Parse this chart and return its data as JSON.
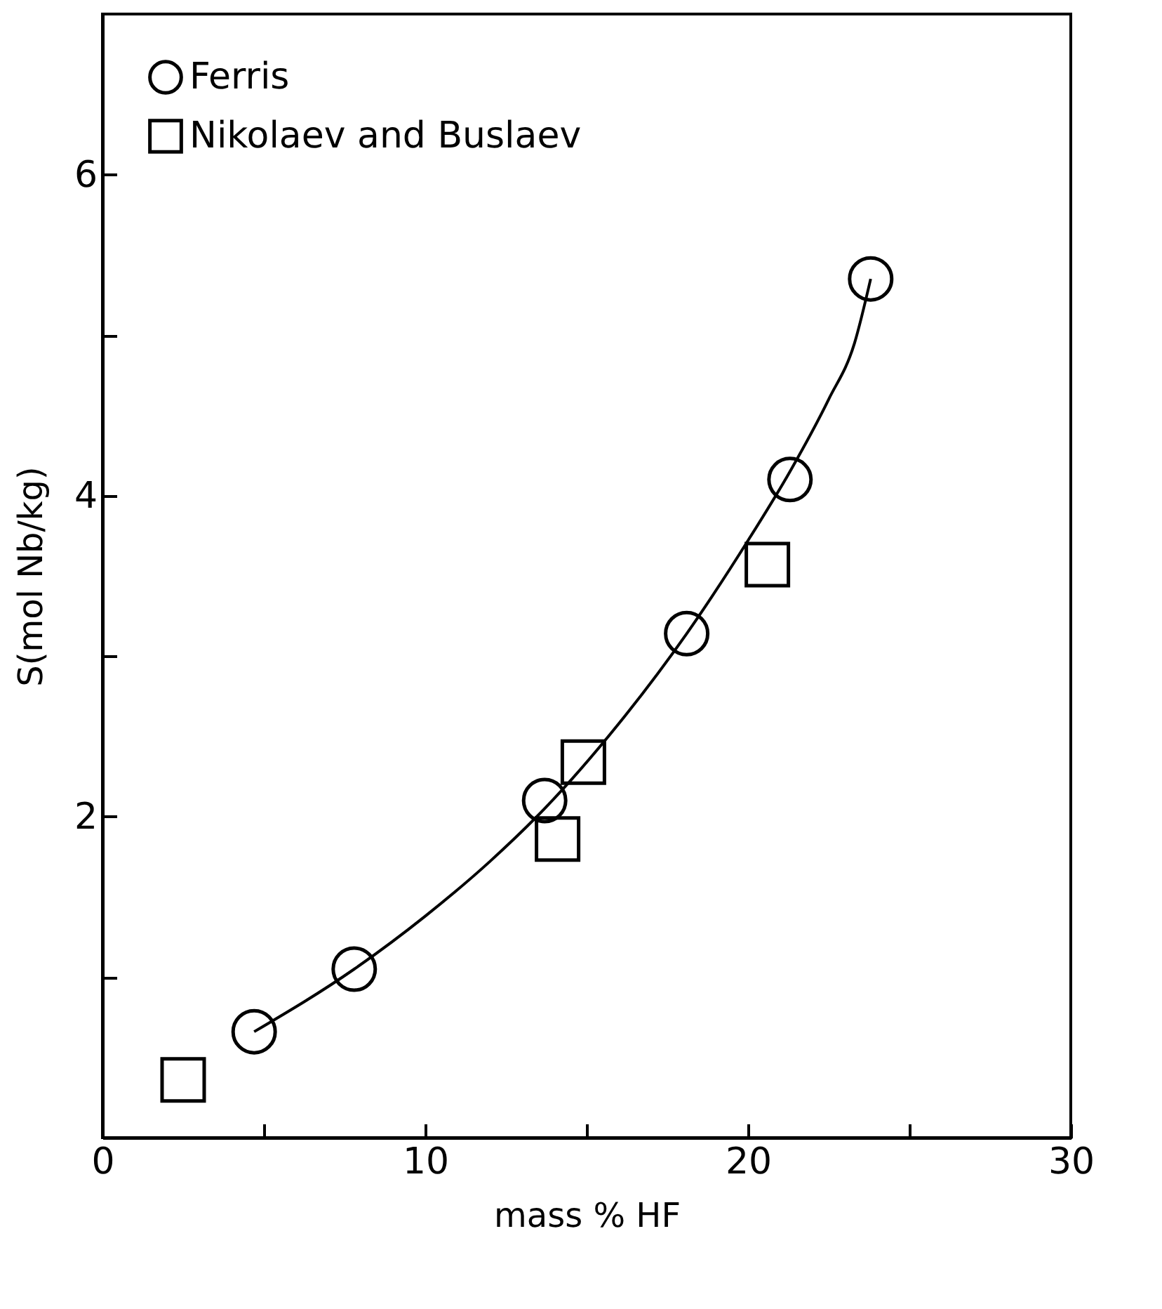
{
  "chart_data": {
    "type": "scatter",
    "xlabel": "mass % HF",
    "ylabel": "S(mol Nb/kg)",
    "xlim": [
      0,
      30
    ],
    "ylim": [
      0,
      7
    ],
    "xticks": [
      0,
      {
        "value": 5,
        "label": null
      },
      10,
      {
        "value": 15,
        "label": null
      },
      20,
      {
        "value": 25,
        "label": null
      },
      30
    ],
    "yticks": [
      {
        "value": 1,
        "label": null
      },
      2,
      {
        "value": 3,
        "label": null
      },
      4,
      {
        "value": 5,
        "label": null
      },
      6
    ],
    "grid": false,
    "legend": "top left",
    "series": [
      {
        "name": "Ferris",
        "color": "#000000",
        "marker": "circle",
        "x": [
          4.7,
          7.8,
          13.7,
          18.1,
          21.3,
          23.8
        ],
        "values": [
          0.66,
          1.05,
          2.1,
          3.14,
          4.1,
          5.35
        ]
      },
      {
        "name": "Nikolaev and Buslaev",
        "color": "#000000",
        "marker": "square",
        "x": [
          2.5,
          14.1,
          14.9,
          20.6
        ],
        "values": [
          0.36,
          1.86,
          2.34,
          3.57
        ]
      },
      {
        "type": "line",
        "color": "#000000",
        "line_style": "solid",
        "x": [
          4.7,
          7.8,
          10,
          12,
          13.7,
          16,
          18.1,
          20,
          21.3,
          22.5,
          23.3,
          23.8
        ],
        "values": [
          0.66,
          1.05,
          1.38,
          1.72,
          2.05,
          2.58,
          3.14,
          3.72,
          4.15,
          4.6,
          4.95,
          5.35
        ]
      }
    ]
  }
}
